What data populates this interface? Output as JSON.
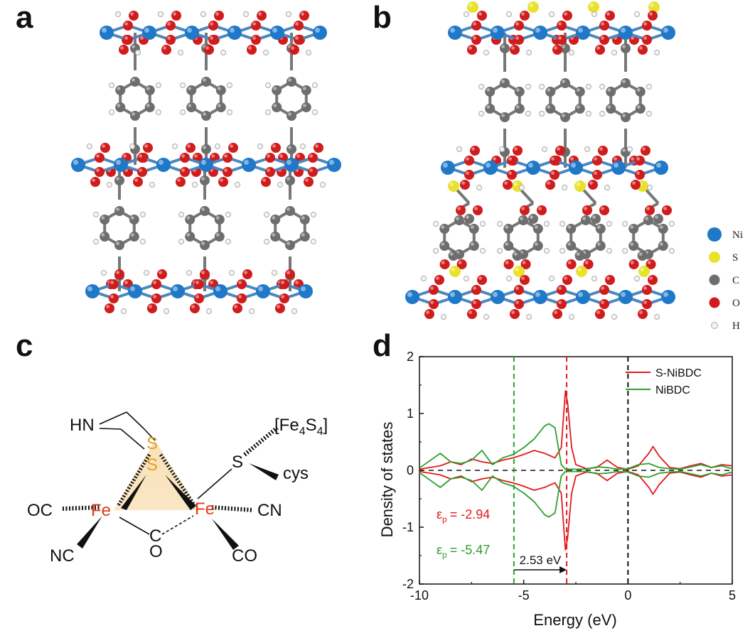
{
  "panels": {
    "a": "a",
    "b": "b",
    "c": "c",
    "d": "d"
  },
  "atom_legend": [
    {
      "label": "Ni",
      "color": "#1f78c8"
    },
    {
      "label": "S",
      "color": "#e8e22a"
    },
    {
      "label": "C",
      "color": "#6e6e6e"
    },
    {
      "label": "O",
      "color": "#d01c1c"
    },
    {
      "label": "H",
      "color": "#e8e8e8"
    }
  ],
  "hydrogenase": {
    "hn": "HN",
    "s_top": "S",
    "s_bottom": "S",
    "fe_left": "Fe",
    "fe_right": "Fe",
    "fe4s4_open": "[Fe",
    "fe4s4_sub1": "4",
    "fe4s4_mid": "S",
    "fe4s4_sub2": "4",
    "fe4s4_close": "]",
    "s_cys": "S",
    "cys": "cys",
    "oc": "OC",
    "nc": "NC",
    "cn": "CN",
    "co": "CO",
    "bridge_c": "C",
    "bridge_o": "O"
  },
  "chart_data": {
    "type": "line",
    "xlabel": "Energy (eV)",
    "ylabel": "Density of states",
    "xlim": [
      -10,
      5
    ],
    "ylim": [
      -2,
      2
    ],
    "xticks": [
      "-10",
      "-5",
      "0",
      "5"
    ],
    "yticks": [
      "-2",
      "-1",
      "0",
      "1",
      "2"
    ],
    "legend_position": "top-right",
    "series": [
      {
        "name": "S-NiBDC",
        "color": "#e31a1c",
        "x": [
          -10,
          -9,
          -8.5,
          -8,
          -7.5,
          -7,
          -6.5,
          -6,
          -5.5,
          -5,
          -4.5,
          -4,
          -3.5,
          -3.2,
          -3,
          -2.9,
          -2.7,
          -2.5,
          -2,
          -1.5,
          -1,
          -0.5,
          0,
          0.5,
          1,
          1.2,
          1.5,
          2,
          2.5,
          3,
          3.5,
          4,
          4.5,
          5
        ],
        "values": [
          0.02,
          0.08,
          0.15,
          0.1,
          0.2,
          0.15,
          0.12,
          0.18,
          0.22,
          0.28,
          0.35,
          0.3,
          0.22,
          0.4,
          1.4,
          1.2,
          0.4,
          0.1,
          0.03,
          0.05,
          0.18,
          0.05,
          0.02,
          0.08,
          0.3,
          0.42,
          0.25,
          0.05,
          0.03,
          0.08,
          0.12,
          0.05,
          0.1,
          0.08
        ]
      },
      {
        "name": "NiBDC",
        "color": "#2ca02c",
        "x": [
          -10,
          -9,
          -8.5,
          -8,
          -7.5,
          -7,
          -6.5,
          -6,
          -5.5,
          -5,
          -4.5,
          -4,
          -3.8,
          -3.5,
          -3.2,
          -3,
          -2.8,
          -2.5,
          -2,
          -1.5,
          -1,
          -0.5,
          0,
          0.5,
          1,
          1.5,
          2,
          2.5,
          3,
          3.5,
          4,
          4.5,
          5
        ],
        "values": [
          0.04,
          0.3,
          0.15,
          0.12,
          0.18,
          0.35,
          0.1,
          0.22,
          0.28,
          0.4,
          0.55,
          0.78,
          0.82,
          0.75,
          0.1,
          0.02,
          0.02,
          0.02,
          0.02,
          0.06,
          0.05,
          0.02,
          0.03,
          0.1,
          0.12,
          0.05,
          0.03,
          0.02,
          0.06,
          0.1,
          0.05,
          0.08,
          0.03
        ]
      }
    ],
    "vlines": [
      {
        "x": -5.47,
        "color": "#2ca02c"
      },
      {
        "x": -2.94,
        "color": "#e31a1c"
      },
      {
        "x": 0,
        "color": "#111111"
      }
    ],
    "annotations": {
      "eps_p_red_eq": "= -2.94",
      "eps_p_green_eq": "= -5.47",
      "eps_symbol": "ε",
      "eps_sub": "p",
      "gap_label": "2.53 eV"
    }
  }
}
